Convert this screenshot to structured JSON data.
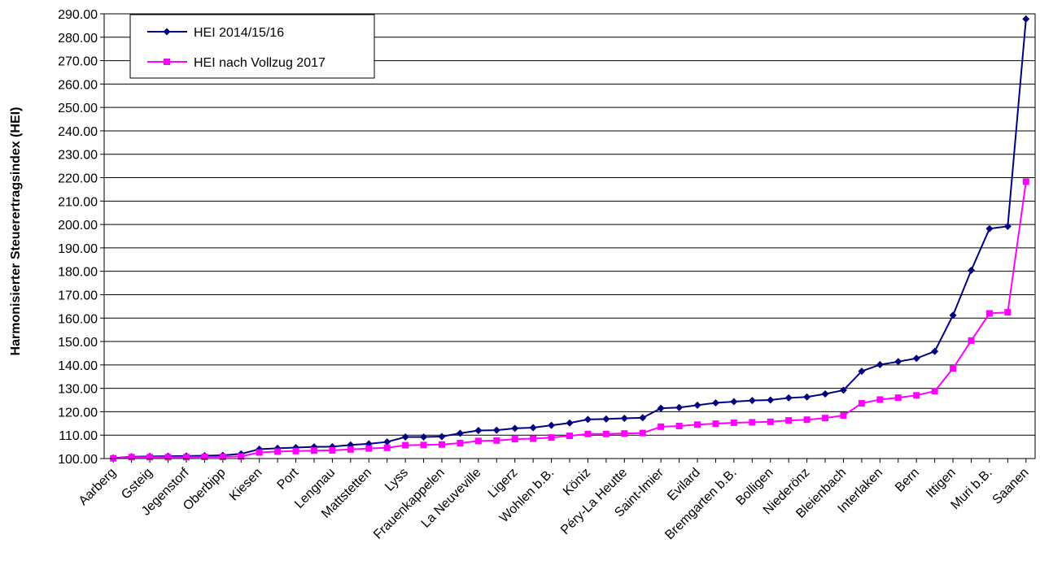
{
  "chart_data": {
    "type": "line",
    "title": "",
    "xlabel": "",
    "ylabel": "Harmonisierter Steuerertragsindex (HEI)",
    "ylim": [
      100,
      290
    ],
    "ytick_step": 10,
    "grid": true,
    "legend_position": "top-left",
    "categories": [
      "Aarberg",
      "",
      "Gsteig",
      "",
      "Jegenstorf",
      "",
      "Oberbipp",
      "",
      "Kiesen",
      "",
      "Port",
      "",
      "Lengnau",
      "",
      "Mattstetten",
      "",
      "Lyss",
      "",
      "Frauenkappelen",
      "",
      "La Neuveville",
      "",
      "Ligerz",
      "",
      "Wohlen b.B.",
      "",
      "Köniz",
      "",
      "Péry-La Heutte",
      "",
      "Saint-Imier",
      "",
      "Evilard",
      "",
      "Bremgarten b.B.",
      "",
      "Bolligen",
      "",
      "Niederönz",
      "",
      "Bleienbach",
      "",
      "Interlaken",
      "",
      "Bern",
      "",
      "Ittigen",
      "",
      "Muri b.B.",
      "",
      "Saanen"
    ],
    "series": [
      {
        "name": "HEI 2014/15/16",
        "color": "#000080",
        "marker": "diamond",
        "values": [
          100.2,
          100.8,
          100.9,
          101.0,
          101.1,
          101.2,
          101.4,
          102.0,
          104.0,
          104.4,
          104.7,
          105.0,
          105.1,
          105.8,
          106.3,
          107.1,
          109.2,
          109.2,
          109.4,
          110.8,
          112.0,
          112.1,
          112.9,
          113.2,
          114.2,
          115.2,
          116.7,
          116.9,
          117.2,
          117.4,
          121.5,
          121.8,
          122.8,
          123.8,
          124.3,
          124.8,
          125.0,
          125.9,
          126.3,
          127.6,
          129.2,
          137.3,
          140.1,
          141.4,
          142.8,
          145.8,
          161.2,
          180.4,
          198.2,
          199.2,
          287.8
        ]
      },
      {
        "name": "HEI nach Vollzug 2017",
        "color": "#FF00FF",
        "marker": "square",
        "values": [
          100.1,
          100.6,
          100.6,
          100.6,
          100.6,
          100.7,
          100.7,
          100.9,
          102.6,
          103.0,
          103.2,
          103.4,
          103.5,
          103.9,
          104.3,
          104.6,
          105.7,
          105.8,
          106.0,
          106.6,
          107.5,
          107.7,
          108.3,
          108.5,
          109.0,
          109.7,
          110.5,
          110.5,
          110.7,
          110.9,
          113.6,
          113.9,
          114.5,
          114.9,
          115.3,
          115.5,
          115.7,
          116.3,
          116.6,
          117.3,
          118.4,
          123.6,
          125.2,
          126.0,
          127.0,
          128.8,
          138.5,
          150.4,
          162.0,
          162.5,
          218.3
        ]
      }
    ]
  }
}
